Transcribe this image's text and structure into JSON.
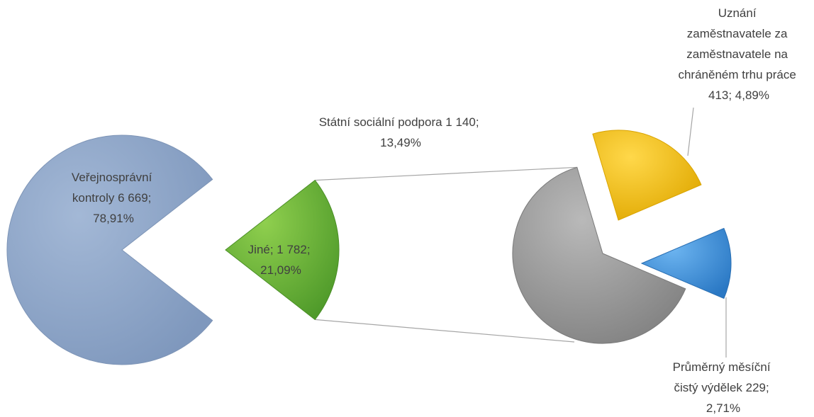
{
  "chart_data": {
    "type": "pie",
    "variant": "pie-of-pie",
    "title": "",
    "main_pie": [
      {
        "name": "Veřejnosprávní kontroly",
        "value_label": "6 669",
        "value": 6669,
        "percent_label": "78,91%",
        "percent": 78.91,
        "color": "#8ea6c8"
      },
      {
        "name": "Jiné",
        "value_label": "1 782",
        "value": 1782,
        "percent_label": "21,09%",
        "percent": 21.09,
        "color": "#6fae3c"
      }
    ],
    "secondary_pie": [
      {
        "name": "Státní sociální podpora",
        "value_label": "1 140",
        "value": 1140,
        "percent_label": "13,49%",
        "percent": 13.49,
        "color": "#9b9b9b"
      },
      {
        "name": "Uznání zaměstnavatele za zaměstnavatele na chráněném trhu práce",
        "value_label": "413",
        "value": 413,
        "percent_label": "4,89%",
        "percent": 4.89,
        "color": "#f2c200"
      },
      {
        "name": "Průměrný měsíční čistý výdělek",
        "value_label": "229",
        "value": 229,
        "percent_label": "2,71%",
        "percent": 2.71,
        "color": "#3f8fd6"
      }
    ],
    "labels": {
      "verejnospravni": [
        "Veřejnosprávní",
        "kontroly 6 669;",
        "78,91%"
      ],
      "jine": [
        "Jiné; 1 782;",
        "21,09%"
      ],
      "statni": [
        "Státní sociální podpora 1 140;",
        "13,49%"
      ],
      "uznani": [
        "Uznání",
        "zaměstnavatele za",
        "zaměstnavatele na",
        "chráněném trhu práce",
        "413; 4,89%"
      ],
      "prumerny": [
        "Průměrný měsíční",
        "čistý výdělek 229;",
        "2,71%"
      ]
    },
    "legend": "none"
  }
}
